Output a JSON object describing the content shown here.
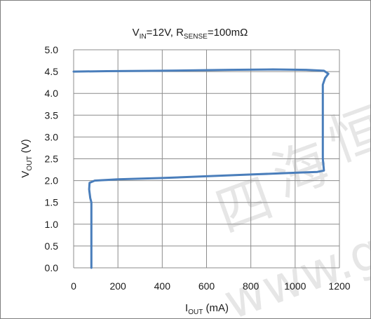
{
  "chart_data": {
    "type": "line",
    "title": {
      "main": "V",
      "main_sub": "IN",
      "rest1": "=12V, R",
      "rest_sub": "SENSE",
      "rest2": "=100mΩ"
    },
    "xlabel": {
      "main": "I",
      "sub": "OUT",
      "unit": " (mA)"
    },
    "ylabel": {
      "main": "V",
      "sub": "OUT",
      "unit": " (V)"
    },
    "xlim": [
      0,
      1200
    ],
    "ylim": [
      0,
      5
    ],
    "xticks": [
      "0",
      "200",
      "400",
      "600",
      "800",
      "1000",
      "1200"
    ],
    "yticks": [
      "0.0",
      "0.5",
      "1.0",
      "1.5",
      "2.0",
      "2.5",
      "3.0",
      "3.5",
      "4.0",
      "4.5",
      "5.0"
    ],
    "grid": true,
    "line_color": "#4a7ebb",
    "series": [
      {
        "name": "",
        "points": [
          [
            80,
            0.0
          ],
          [
            80,
            1.0
          ],
          [
            80,
            1.5
          ],
          [
            75,
            1.6
          ],
          [
            70,
            1.8
          ],
          [
            72,
            1.95
          ],
          [
            95,
            2.0
          ],
          [
            200,
            2.03
          ],
          [
            400,
            2.06
          ],
          [
            600,
            2.1
          ],
          [
            800,
            2.14
          ],
          [
            1000,
            2.18
          ],
          [
            1100,
            2.2
          ],
          [
            1130,
            2.23
          ],
          [
            1125,
            2.5
          ],
          [
            1125,
            3.5
          ],
          [
            1125,
            4.2
          ],
          [
            1135,
            4.35
          ],
          [
            1150,
            4.45
          ],
          [
            1130,
            4.52
          ],
          [
            1050,
            4.54
          ],
          [
            900,
            4.55
          ],
          [
            700,
            4.54
          ],
          [
            400,
            4.52
          ],
          [
            150,
            4.51
          ],
          [
            0,
            4.5
          ]
        ]
      }
    ]
  },
  "watermark": {
    "chars": "四海恒",
    "latin": "www.gof",
    "color": "#d3d3d3"
  }
}
